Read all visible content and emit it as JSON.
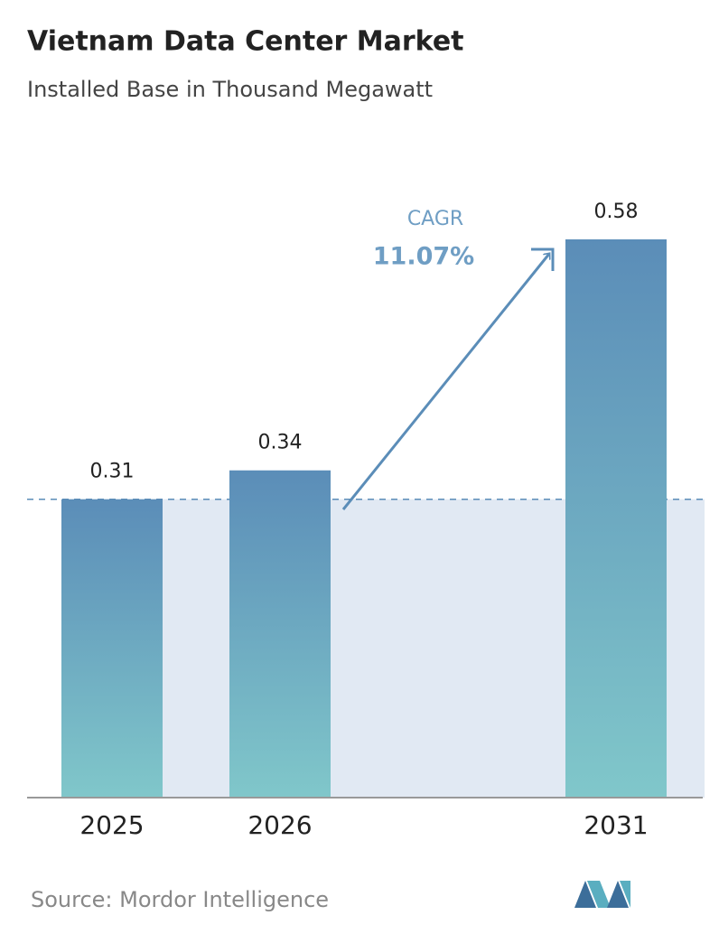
{
  "chart_data": {
    "type": "bar",
    "title": "Vietnam Data Center Market",
    "subtitle": "Installed Base in Thousand Megawatt",
    "categories": [
      "2025",
      "2026",
      "2031"
    ],
    "values": [
      0.31,
      0.34,
      0.58
    ],
    "annotation": {
      "label": "CAGR",
      "value": "11.07%"
    },
    "source": "Source: Mordor Intelligence"
  }
}
